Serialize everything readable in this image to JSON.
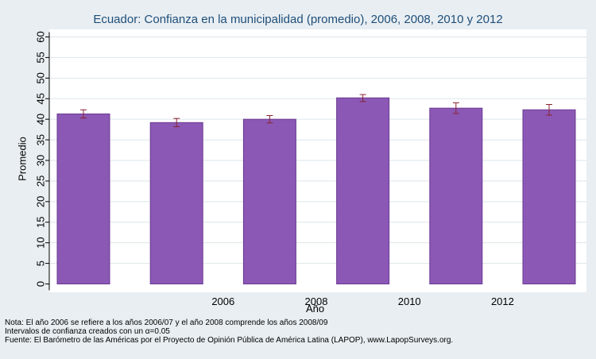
{
  "chart_data": {
    "type": "bar",
    "title": "Ecuador: Confianza en la municipalidad (promedio), 2006, 2008, 2010 y 2012",
    "xlabel": "Año",
    "ylabel": "Promedio",
    "ylim": [
      0,
      60
    ],
    "yticks": [
      "0",
      "5",
      "10",
      "15",
      "20",
      "25",
      "30",
      "35",
      "40",
      "45",
      "50",
      "55",
      "60"
    ],
    "xtick_labels": [
      "",
      "2006",
      "2008",
      "2010",
      "2012",
      ""
    ],
    "values": [
      41.3,
      39.2,
      40.0,
      45.2,
      42.7,
      42.3
    ],
    "ci_low": [
      40.3,
      38.2,
      39.1,
      44.3,
      41.4,
      41.0
    ],
    "ci_high": [
      42.3,
      40.2,
      40.9,
      46.0,
      44.0,
      43.6
    ],
    "grid": true,
    "colors": {
      "bar": "#8b58b5",
      "bar_edge": "#6b3a92",
      "errorbar": "#8b2232",
      "grid": "#dde5ea"
    }
  },
  "notes": {
    "line1": "Nota: El año 2006 se refiere a los años 2006/07 y el año 2008 comprende los años 2008/09",
    "line2": "Intervalos de confianza creados con un α=0.05",
    "line3": "Fuente: El Barómetro de las Américas por el Proyecto de Opinión Pública de América Latina (LAPOP), www.LapopSurveys.org."
  }
}
